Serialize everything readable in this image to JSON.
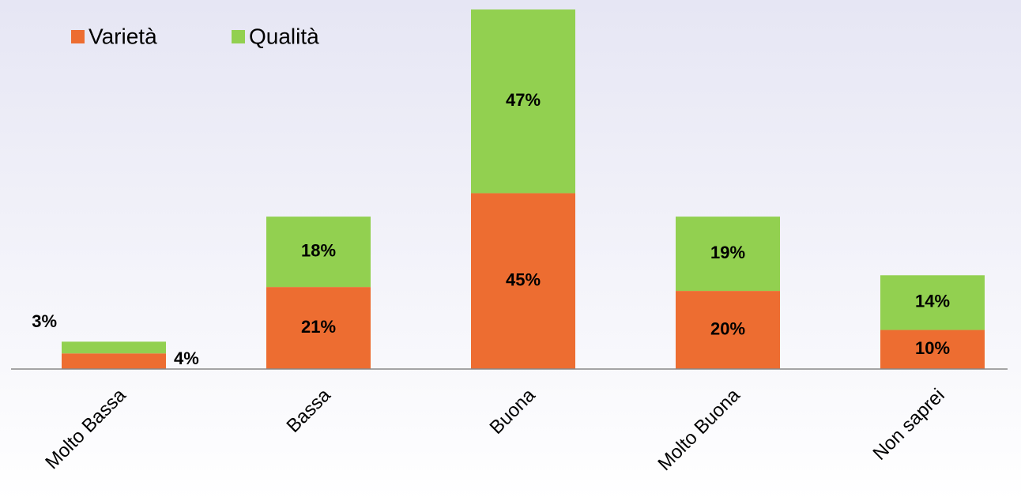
{
  "chart_data": {
    "type": "stacked_bar",
    "categories": [
      "Molto Bassa",
      "Bassa",
      "Buona",
      "Molto Buona",
      "Non saprei"
    ],
    "series": [
      {
        "name": "Varietà",
        "color": "#ed6d31",
        "values": [
          4,
          21,
          45,
          20,
          10
        ],
        "value_labels": [
          "4%",
          "21%",
          "45%",
          "20%",
          "10%"
        ]
      },
      {
        "name": "Qualità",
        "color": "#92d050",
        "values": [
          3,
          18,
          47,
          19,
          14
        ],
        "value_labels": [
          "3%",
          "18%",
          "47%",
          "19%",
          "14%"
        ]
      }
    ],
    "ylim": [
      0,
      92
    ],
    "legend": "top-left"
  }
}
